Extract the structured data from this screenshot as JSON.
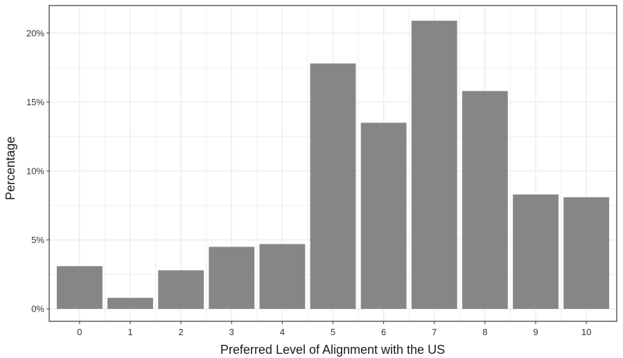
{
  "chart_data": {
    "type": "bar",
    "categories": [
      "0",
      "1",
      "2",
      "3",
      "4",
      "5",
      "6",
      "7",
      "8",
      "9",
      "10"
    ],
    "values": [
      3.1,
      0.8,
      2.8,
      4.5,
      4.7,
      17.8,
      13.5,
      20.9,
      15.8,
      8.3,
      8.1
    ],
    "title": "",
    "xlabel": "Preferred Level of Alignment with the US",
    "ylabel": "Percentage",
    "ylim": [
      -0.9,
      22
    ],
    "yticks": [
      0,
      5,
      10,
      15,
      20
    ],
    "ytick_labels": [
      "0%",
      "5%",
      "10%",
      "15%",
      "20%"
    ],
    "grid": true,
    "legend": "none",
    "colors": {
      "bar": "#868686",
      "grid": "#ebebeb",
      "panel_border": "#333333",
      "background": "#ffffff"
    }
  }
}
